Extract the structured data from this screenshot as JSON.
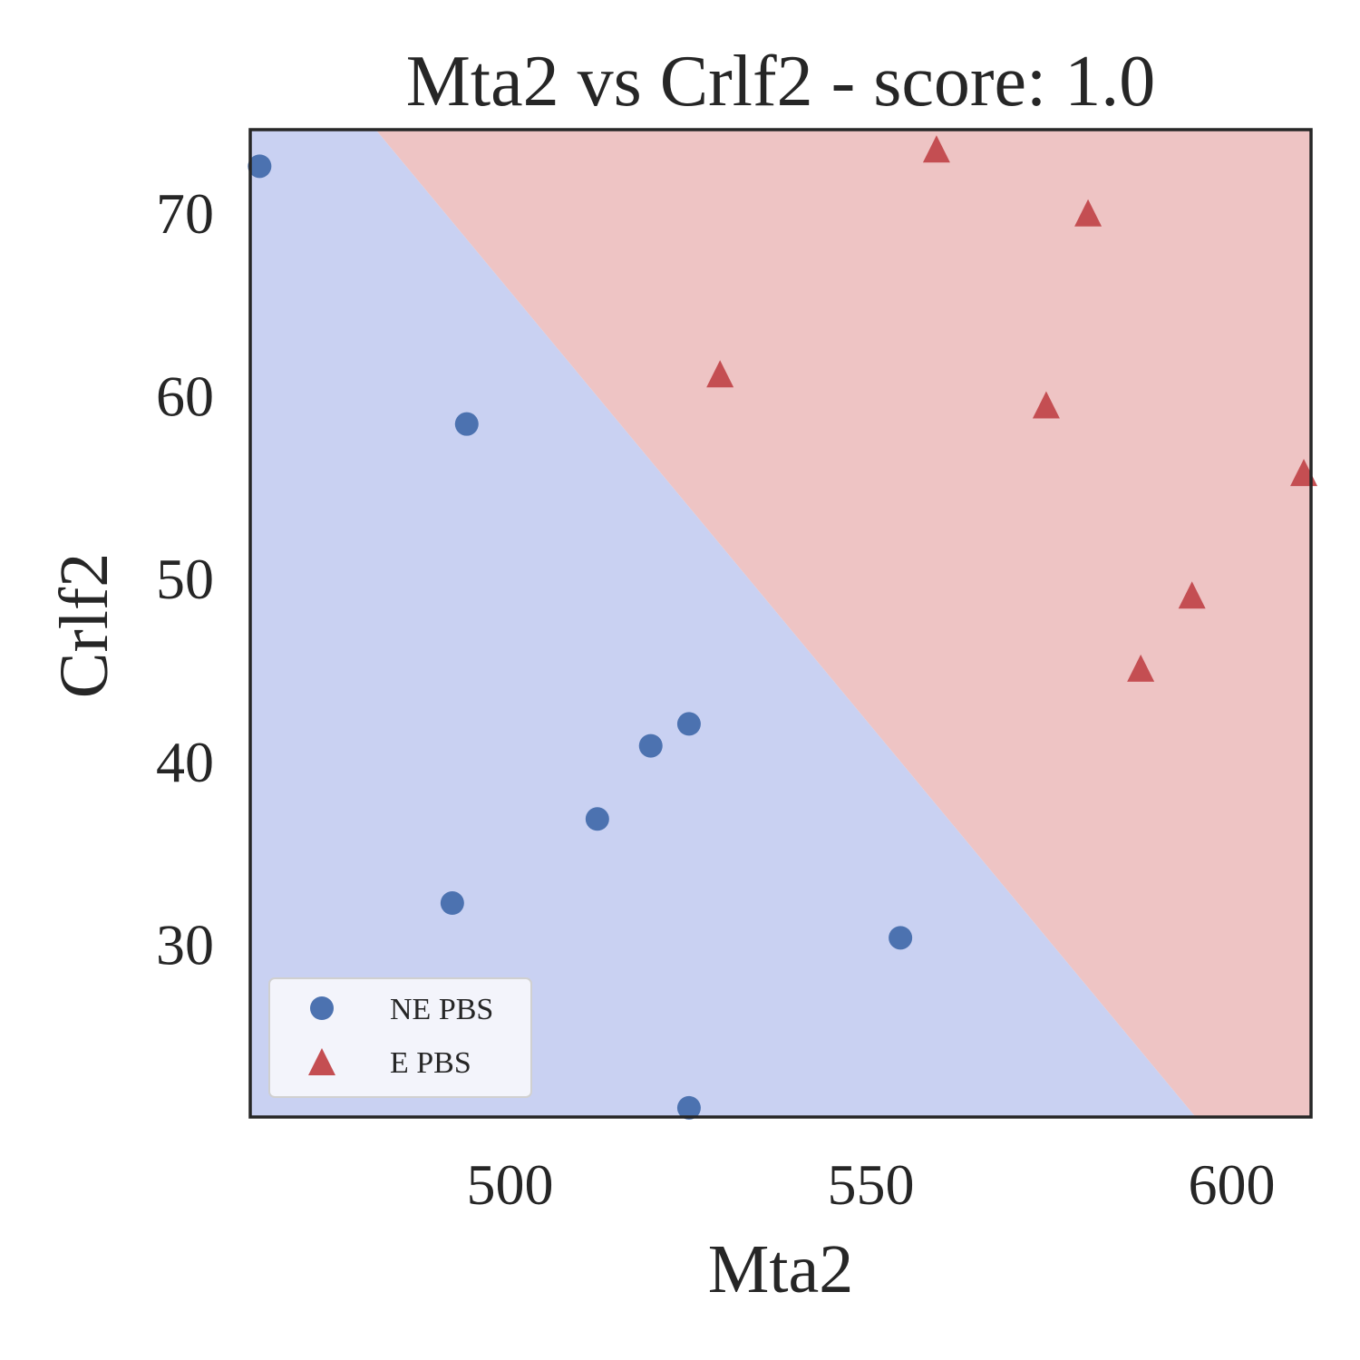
{
  "chart_data": {
    "type": "scatter",
    "title": "Mta2 vs Crlf2 - score: 1.0",
    "xlabel": "Mta2",
    "ylabel": "Crlf2",
    "xlim": [
      464,
      611
    ],
    "ylim": [
      20.5,
      74.5
    ],
    "xticks": [
      500,
      550,
      600
    ],
    "yticks": [
      30,
      40,
      50,
      60,
      70
    ],
    "xtick_labels": [
      "500",
      "550",
      "600"
    ],
    "ytick_labels": [
      "30",
      "40",
      "50",
      "60",
      "70"
    ],
    "grid": false,
    "legend_position": "lower-left",
    "decision_boundary": {
      "x": [
        481.4,
        595.0
      ]
    },
    "region_colors": {
      "NE PBS": "#c9d1f2",
      "E PBS": "#eec4c4"
    },
    "series": [
      {
        "name": "NE PBS",
        "marker": "circle",
        "color": "#4c72b0",
        "points": [
          [
            465.3,
            72.5
          ],
          [
            494.0,
            58.4
          ],
          [
            512.1,
            36.8
          ],
          [
            519.5,
            40.8
          ],
          [
            524.8,
            42.0
          ],
          [
            492.0,
            32.2
          ],
          [
            554.1,
            30.3
          ],
          [
            524.8,
            21.0
          ]
        ]
      },
      {
        "name": "E PBS",
        "marker": "triangle",
        "color": "#c44e52",
        "points": [
          [
            559.1,
            73.3
          ],
          [
            580.1,
            69.8
          ],
          [
            529.1,
            61.0
          ],
          [
            574.3,
            59.3
          ],
          [
            610.0,
            55.6
          ],
          [
            594.5,
            48.9
          ],
          [
            587.4,
            44.9
          ]
        ]
      }
    ]
  }
}
